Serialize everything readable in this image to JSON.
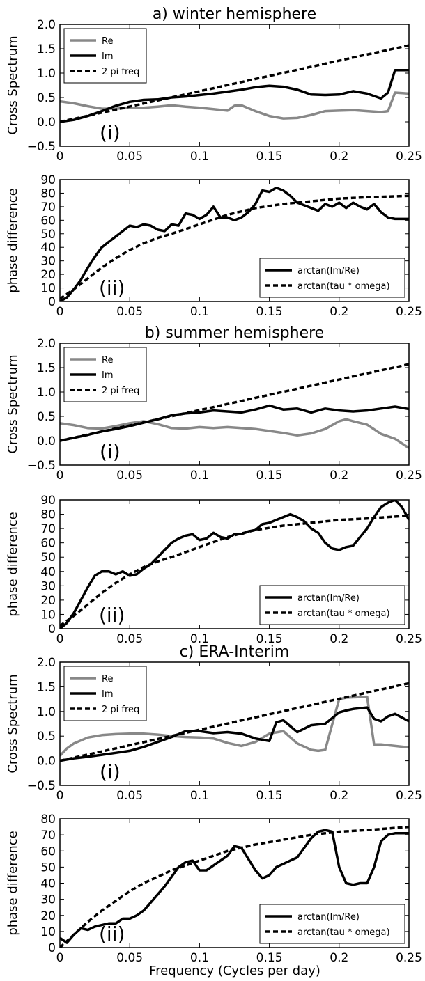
{
  "figure": {
    "xlabel": "Frequency (Cycles per day)",
    "colors": {
      "re": "#888888",
      "im": "#000000",
      "ref": "#000000"
    }
  },
  "chart_data": [
    {
      "type": "line",
      "title": "a) winter hemisphere",
      "tag": "(i)",
      "xlabel": "",
      "ylabel": "Cross Spectrum",
      "xlim": [
        0,
        0.25
      ],
      "ylim": [
        -0.5,
        2.0
      ],
      "xticks": [
        "0",
        "0.05",
        "0.1",
        "0.15",
        "0.2",
        "0.25"
      ],
      "yticks": [
        "−0.5",
        "0.0",
        "0.5",
        "1.0",
        "1.5",
        "2.0"
      ],
      "legend_position": "top-left",
      "series": [
        {
          "name": "Re",
          "color": "#888888",
          "dash": false,
          "x": [
            0,
            0.01,
            0.02,
            0.03,
            0.04,
            0.05,
            0.06,
            0.07,
            0.08,
            0.09,
            0.1,
            0.11,
            0.12,
            0.125,
            0.13,
            0.14,
            0.15,
            0.16,
            0.17,
            0.18,
            0.19,
            0.2,
            0.21,
            0.22,
            0.23,
            0.235,
            0.24,
            0.25
          ],
          "y": [
            0.42,
            0.38,
            0.32,
            0.27,
            0.27,
            0.29,
            0.29,
            0.31,
            0.34,
            0.31,
            0.29,
            0.26,
            0.23,
            0.33,
            0.34,
            0.22,
            0.12,
            0.07,
            0.08,
            0.14,
            0.22,
            0.23,
            0.24,
            0.22,
            0.2,
            0.22,
            0.6,
            0.58
          ]
        },
        {
          "name": "Im",
          "color": "#000000",
          "dash": false,
          "x": [
            0,
            0.01,
            0.02,
            0.03,
            0.04,
            0.05,
            0.06,
            0.07,
            0.08,
            0.09,
            0.1,
            0.11,
            0.12,
            0.13,
            0.14,
            0.15,
            0.16,
            0.17,
            0.18,
            0.19,
            0.2,
            0.21,
            0.22,
            0.23,
            0.235,
            0.24,
            0.25
          ],
          "y": [
            0.0,
            0.04,
            0.12,
            0.22,
            0.33,
            0.41,
            0.45,
            0.46,
            0.5,
            0.52,
            0.55,
            0.58,
            0.62,
            0.66,
            0.71,
            0.74,
            0.72,
            0.66,
            0.56,
            0.55,
            0.56,
            0.63,
            0.58,
            0.48,
            0.6,
            1.06,
            1.06
          ]
        },
        {
          "name": "2 pi freq",
          "color": "#000000",
          "dash": true,
          "x": [
            0,
            0.25
          ],
          "y": [
            0.0,
            1.57
          ]
        }
      ]
    },
    {
      "type": "line",
      "title": "",
      "tag": "(ii)",
      "xlabel": "",
      "ylabel": "phase difference",
      "xlim": [
        0,
        0.25
      ],
      "ylim": [
        0,
        90
      ],
      "xticks": [
        "0",
        "0.05",
        "0.1",
        "0.15",
        "0.2",
        "0.25"
      ],
      "yticks": [
        "0",
        "10",
        "20",
        "30",
        "40",
        "50",
        "60",
        "70",
        "80",
        "90"
      ],
      "legend_position": "bottom-right",
      "series": [
        {
          "name": "arctan(Im/Re)",
          "color": "#000000",
          "dash": false,
          "x": [
            0,
            0.005,
            0.01,
            0.015,
            0.02,
            0.025,
            0.03,
            0.035,
            0.04,
            0.045,
            0.05,
            0.055,
            0.06,
            0.065,
            0.07,
            0.075,
            0.08,
            0.085,
            0.09,
            0.095,
            0.1,
            0.105,
            0.11,
            0.115,
            0.12,
            0.125,
            0.13,
            0.135,
            0.14,
            0.145,
            0.15,
            0.155,
            0.16,
            0.165,
            0.17,
            0.175,
            0.18,
            0.185,
            0.19,
            0.195,
            0.2,
            0.205,
            0.21,
            0.215,
            0.22,
            0.225,
            0.23,
            0.235,
            0.24,
            0.245,
            0.25
          ],
          "y": [
            0,
            3,
            9,
            16,
            25,
            33,
            40,
            44,
            48,
            52,
            56,
            55,
            57,
            56,
            53,
            52,
            57,
            56,
            65,
            64,
            61,
            64,
            70,
            62,
            62,
            60,
            62,
            66,
            72,
            82,
            81,
            84,
            82,
            78,
            73,
            71,
            69,
            67,
            72,
            70,
            73,
            69,
            73,
            70,
            68,
            72,
            66,
            62,
            61,
            61,
            61
          ],
          "x_note": ""
        },
        {
          "name": "arctan(tau * omega)",
          "color": "#000000",
          "dash": true,
          "x": [
            0,
            0.01,
            0.02,
            0.03,
            0.04,
            0.05,
            0.06,
            0.07,
            0.08,
            0.1,
            0.12,
            0.14,
            0.16,
            0.18,
            0.2,
            0.22,
            0.25
          ],
          "y": [
            2,
            9,
            17,
            25,
            32,
            38,
            43,
            47,
            50,
            57,
            64,
            69,
            72,
            74,
            76,
            77,
            78
          ]
        }
      ]
    },
    {
      "type": "line",
      "title": "b) summer hemisphere",
      "tag": "(i)",
      "xlabel": "",
      "ylabel": "Cross Spectrum",
      "xlim": [
        0,
        0.25
      ],
      "ylim": [
        -0.5,
        2.0
      ],
      "xticks": [
        "0",
        "0.05",
        "0.1",
        "0.15",
        "0.2",
        "0.25"
      ],
      "yticks": [
        "−0.5",
        "0.0",
        "0.5",
        "1.0",
        "1.5",
        "2.0"
      ],
      "legend_position": "top-left",
      "series": [
        {
          "name": "Re",
          "color": "#888888",
          "dash": false,
          "x": [
            0,
            0.01,
            0.02,
            0.03,
            0.04,
            0.05,
            0.06,
            0.07,
            0.08,
            0.09,
            0.1,
            0.11,
            0.12,
            0.13,
            0.14,
            0.15,
            0.16,
            0.17,
            0.18,
            0.19,
            0.2,
            0.205,
            0.21,
            0.22,
            0.23,
            0.24,
            0.25
          ],
          "y": [
            0.36,
            0.32,
            0.26,
            0.25,
            0.3,
            0.36,
            0.4,
            0.34,
            0.26,
            0.25,
            0.28,
            0.26,
            0.28,
            0.26,
            0.24,
            0.2,
            0.16,
            0.11,
            0.15,
            0.24,
            0.4,
            0.44,
            0.4,
            0.33,
            0.14,
            0.04,
            -0.15
          ]
        },
        {
          "name": "Im",
          "color": "#000000",
          "dash": false,
          "x": [
            0,
            0.01,
            0.02,
            0.03,
            0.04,
            0.05,
            0.06,
            0.07,
            0.08,
            0.09,
            0.1,
            0.11,
            0.12,
            0.13,
            0.14,
            0.15,
            0.16,
            0.17,
            0.18,
            0.19,
            0.2,
            0.21,
            0.22,
            0.23,
            0.24,
            0.25
          ],
          "y": [
            0.0,
            0.06,
            0.12,
            0.19,
            0.24,
            0.3,
            0.37,
            0.44,
            0.52,
            0.56,
            0.58,
            0.62,
            0.6,
            0.58,
            0.64,
            0.72,
            0.64,
            0.66,
            0.58,
            0.66,
            0.62,
            0.6,
            0.62,
            0.66,
            0.7,
            0.65
          ]
        },
        {
          "name": "2 pi freq",
          "color": "#000000",
          "dash": true,
          "x": [
            0,
            0.25
          ],
          "y": [
            0.0,
            1.57
          ]
        }
      ]
    },
    {
      "type": "line",
      "title": "",
      "tag": "(ii)",
      "xlabel": "",
      "ylabel": "phase difference",
      "xlim": [
        0,
        0.25
      ],
      "ylim": [
        0,
        90
      ],
      "xticks": [
        "0",
        "0.05",
        "0.1",
        "0.15",
        "0.2",
        "0.25"
      ],
      "yticks": [
        "0",
        "10",
        "20",
        "30",
        "40",
        "50",
        "60",
        "70",
        "80",
        "90"
      ],
      "legend_position": "bottom-right",
      "series": [
        {
          "name": "arctan(Im/Re)",
          "color": "#000000",
          "dash": false,
          "x": [
            0,
            0.005,
            0.01,
            0.015,
            0.02,
            0.025,
            0.03,
            0.035,
            0.04,
            0.045,
            0.05,
            0.055,
            0.06,
            0.065,
            0.07,
            0.075,
            0.08,
            0.085,
            0.09,
            0.095,
            0.1,
            0.105,
            0.11,
            0.115,
            0.12,
            0.125,
            0.13,
            0.135,
            0.14,
            0.145,
            0.15,
            0.155,
            0.16,
            0.165,
            0.17,
            0.175,
            0.18,
            0.185,
            0.19,
            0.195,
            0.2,
            0.205,
            0.21,
            0.215,
            0.22,
            0.225,
            0.23,
            0.235,
            0.24,
            0.245,
            0.25
          ],
          "y": [
            0,
            4,
            11,
            20,
            29,
            37,
            40,
            40,
            38,
            40,
            37,
            38,
            42,
            45,
            50,
            55,
            60,
            63,
            65,
            66,
            62,
            63,
            67,
            64,
            63,
            66,
            66,
            68,
            69,
            73,
            74,
            76,
            78,
            80,
            78,
            75,
            70,
            67,
            60,
            56,
            55,
            57,
            58,
            64,
            70,
            78,
            85,
            88,
            90,
            85,
            76
          ]
        },
        {
          "name": "arctan(tau * omega)",
          "color": "#000000",
          "dash": true,
          "x": [
            0,
            0.01,
            0.02,
            0.03,
            0.04,
            0.05,
            0.06,
            0.07,
            0.08,
            0.1,
            0.12,
            0.14,
            0.16,
            0.18,
            0.2,
            0.22,
            0.25
          ],
          "y": [
            2,
            9,
            17,
            25,
            32,
            38,
            43,
            47,
            50,
            57,
            64,
            69,
            72,
            74,
            76,
            77,
            79
          ]
        }
      ]
    },
    {
      "type": "line",
      "title": "c) ERA-Interim",
      "tag": "(i)",
      "xlabel": "",
      "ylabel": "Cross Spectrum",
      "xlim": [
        0,
        0.25
      ],
      "ylim": [
        -0.5,
        2.0
      ],
      "xticks": [
        "0",
        "0.05",
        "0.1",
        "0.15",
        "0.2",
        "0.25"
      ],
      "yticks": [
        "−0.5",
        "0.0",
        "0.5",
        "1.0",
        "1.5",
        "2.0"
      ],
      "legend_position": "top-left",
      "series": [
        {
          "name": "Re",
          "color": "#888888",
          "dash": false,
          "x": [
            0,
            0.005,
            0.01,
            0.02,
            0.03,
            0.04,
            0.05,
            0.06,
            0.07,
            0.08,
            0.09,
            0.1,
            0.11,
            0.12,
            0.13,
            0.14,
            0.15,
            0.16,
            0.17,
            0.18,
            0.185,
            0.19,
            0.2,
            0.205,
            0.22,
            0.225,
            0.23,
            0.24,
            0.25
          ],
          "y": [
            0.1,
            0.25,
            0.35,
            0.47,
            0.52,
            0.54,
            0.55,
            0.55,
            0.53,
            0.5,
            0.48,
            0.47,
            0.45,
            0.36,
            0.3,
            0.38,
            0.55,
            0.6,
            0.35,
            0.22,
            0.2,
            0.22,
            1.25,
            1.28,
            1.3,
            0.33,
            0.33,
            0.3,
            0.27
          ]
        },
        {
          "name": "Im",
          "color": "#000000",
          "dash": false,
          "x": [
            0,
            0.01,
            0.02,
            0.03,
            0.04,
            0.05,
            0.06,
            0.07,
            0.08,
            0.09,
            0.1,
            0.11,
            0.12,
            0.13,
            0.14,
            0.15,
            0.155,
            0.16,
            0.17,
            0.18,
            0.19,
            0.2,
            0.205,
            0.21,
            0.22,
            0.225,
            0.23,
            0.235,
            0.24,
            0.25
          ],
          "y": [
            0.0,
            0.05,
            0.08,
            0.12,
            0.16,
            0.2,
            0.28,
            0.38,
            0.48,
            0.6,
            0.6,
            0.56,
            0.58,
            0.55,
            0.45,
            0.4,
            0.78,
            0.82,
            0.58,
            0.72,
            0.75,
            0.98,
            1.02,
            1.05,
            1.08,
            0.85,
            0.8,
            0.9,
            0.95,
            0.8
          ]
        },
        {
          "name": "2 pi freq",
          "color": "#000000",
          "dash": true,
          "x": [
            0,
            0.25
          ],
          "y": [
            0.0,
            1.57
          ]
        }
      ]
    },
    {
      "type": "line",
      "title": "",
      "tag": "(ii)",
      "xlabel": "Frequency (Cycles per day)",
      "ylabel": "phase difference",
      "xlim": [
        0,
        0.25
      ],
      "ylim": [
        0,
        80
      ],
      "xticks": [
        "0",
        "0.05",
        "0.1",
        "0.15",
        "0.2",
        "0.25"
      ],
      "yticks": [
        "0",
        "10",
        "20",
        "30",
        "40",
        "50",
        "60",
        "70",
        "80"
      ],
      "legend_position": "bottom-right",
      "series": [
        {
          "name": "arctan(Im/Re)",
          "color": "#000000",
          "dash": false,
          "x": [
            0,
            0.005,
            0.01,
            0.015,
            0.02,
            0.025,
            0.03,
            0.035,
            0.04,
            0.045,
            0.05,
            0.055,
            0.06,
            0.065,
            0.07,
            0.075,
            0.08,
            0.085,
            0.09,
            0.095,
            0.1,
            0.105,
            0.11,
            0.115,
            0.12,
            0.125,
            0.13,
            0.135,
            0.14,
            0.145,
            0.15,
            0.155,
            0.16,
            0.165,
            0.17,
            0.175,
            0.18,
            0.185,
            0.19,
            0.195,
            0.2,
            0.205,
            0.21,
            0.215,
            0.22,
            0.225,
            0.23,
            0.235,
            0.24,
            0.245,
            0.25
          ],
          "y": [
            6,
            3,
            8,
            12,
            11,
            13,
            14,
            15,
            15,
            18,
            18,
            20,
            23,
            28,
            33,
            38,
            44,
            50,
            53,
            54,
            48,
            48,
            51,
            54,
            57,
            63,
            62,
            55,
            48,
            43,
            45,
            50,
            52,
            54,
            56,
            62,
            68,
            72,
            73,
            72,
            50,
            40,
            39,
            40,
            40,
            50,
            66,
            70,
            71,
            71,
            71
          ]
        },
        {
          "name": "arctan(tau * omega)",
          "color": "#000000",
          "dash": true,
          "x": [
            0,
            0.01,
            0.02,
            0.03,
            0.04,
            0.05,
            0.06,
            0.07,
            0.08,
            0.1,
            0.12,
            0.14,
            0.16,
            0.18,
            0.2,
            0.22,
            0.25
          ],
          "y": [
            0,
            8,
            16,
            23,
            29,
            35,
            40,
            44,
            48,
            54,
            60,
            64,
            67,
            70,
            72,
            73,
            75
          ]
        }
      ]
    }
  ]
}
